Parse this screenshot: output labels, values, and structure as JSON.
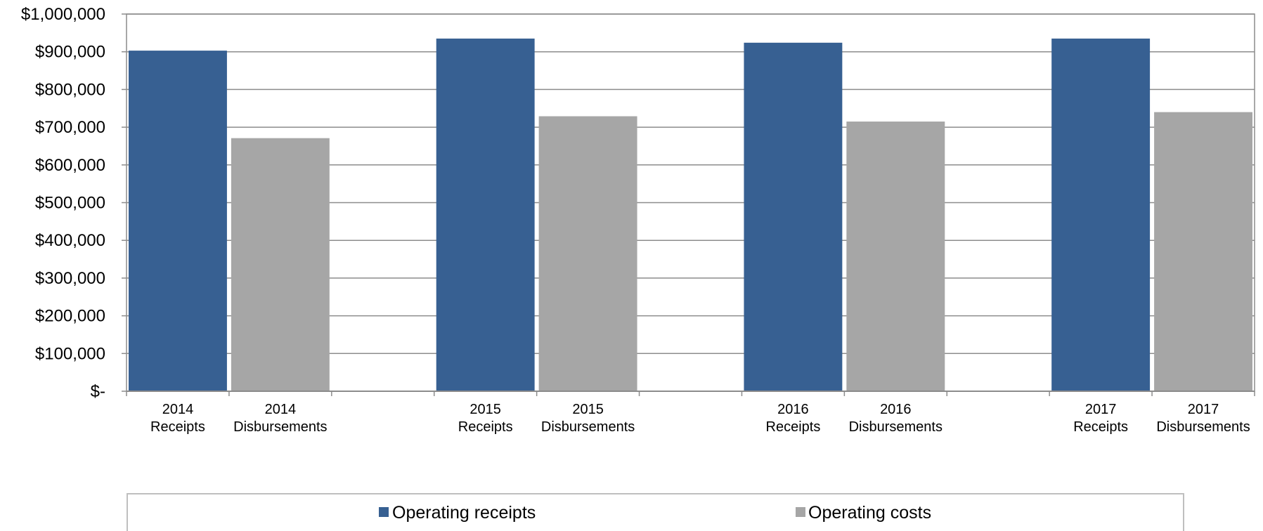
{
  "chart_data": {
    "type": "bar",
    "categories": [
      "2014 Receipts",
      "2014 Disbursements",
      "",
      "2015 Receipts",
      "2015 Disbursements",
      "",
      "2016 Receipts",
      "2016 Disbursements",
      "",
      "2017 Receipts",
      "2017 Disbursements"
    ],
    "category_lines": [
      [
        "2014",
        "Receipts"
      ],
      [
        "2014",
        "Disbursements"
      ],
      [
        "",
        ""
      ],
      [
        "2015",
        "Receipts"
      ],
      [
        "2015",
        "Disbursements"
      ],
      [
        "",
        ""
      ],
      [
        "2016",
        "Receipts"
      ],
      [
        "2016",
        "Disbursements"
      ],
      [
        "",
        ""
      ],
      [
        "2017",
        "Receipts"
      ],
      [
        "2017",
        "Disbursements"
      ]
    ],
    "series": [
      {
        "name": "Operating receipts",
        "color": "#376092",
        "values": [
          903000,
          null,
          null,
          935000,
          null,
          null,
          924000,
          null,
          null,
          935000,
          null
        ]
      },
      {
        "name": "Operating costs",
        "color": "#A6A6A6",
        "values": [
          null,
          671000,
          null,
          null,
          729000,
          null,
          null,
          715000,
          null,
          null,
          740000
        ]
      }
    ],
    "ylim": [
      0,
      1000000
    ],
    "yticks": [
      0,
      100000,
      200000,
      300000,
      400000,
      500000,
      600000,
      700000,
      800000,
      900000,
      1000000
    ],
    "ytick_labels": [
      "$-",
      "$100,000",
      "$200,000",
      "$300,000",
      "$400,000",
      "$500,000",
      "$600,000",
      "$700,000",
      "$800,000",
      "$900,000",
      "$1,000,000"
    ],
    "title": "",
    "xlabel": "",
    "ylabel": "",
    "grid": true,
    "legend_position": "bottom"
  }
}
